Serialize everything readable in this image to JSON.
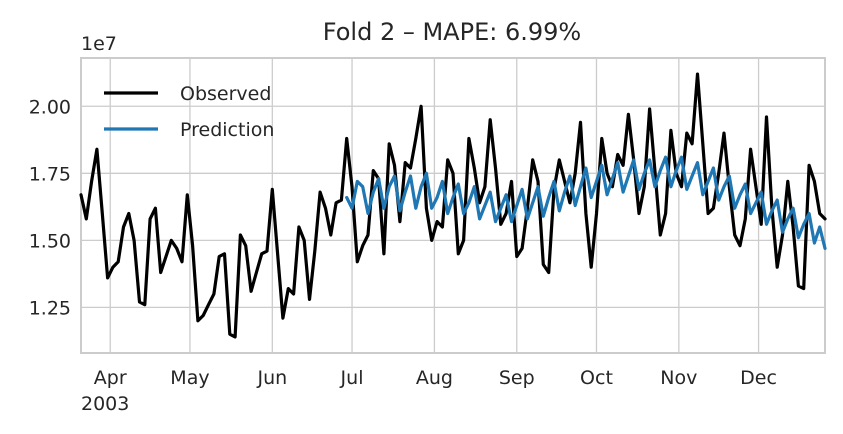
{
  "chart_data": {
    "type": "line",
    "title": "Fold 2 – MAPE: 6.99%",
    "offset_label": "1e7",
    "x_year_label": "2003",
    "x_tick_labels": [
      {
        "date": "2003-04-01",
        "label": "Apr"
      },
      {
        "date": "2003-05-01",
        "label": "May"
      },
      {
        "date": "2003-06-01",
        "label": "Jun"
      },
      {
        "date": "2003-07-01",
        "label": "Jul"
      },
      {
        "date": "2003-08-01",
        "label": "Aug"
      },
      {
        "date": "2003-09-01",
        "label": "Sep"
      },
      {
        "date": "2003-10-01",
        "label": "Oct"
      },
      {
        "date": "2003-11-01",
        "label": "Nov"
      },
      {
        "date": "2003-12-01",
        "label": "Dec"
      }
    ],
    "xlim": [
      "2003-03-21",
      "2003-12-26"
    ],
    "y_ticks": [
      {
        "value": 1.25,
        "label": "1.25"
      },
      {
        "value": 1.5,
        "label": "1.50"
      },
      {
        "value": 1.75,
        "label": "1.75"
      },
      {
        "value": 2.0,
        "label": "2.00"
      }
    ],
    "ylim": [
      1.08,
      2.18
    ],
    "y_unit_multiplier": 10000000,
    "grid": true,
    "legend_position": "top-left",
    "series": [
      {
        "name": "Observed",
        "color": "#000000",
        "x": [
          "2003-03-21",
          "2003-03-23",
          "2003-03-25",
          "2003-03-27",
          "2003-03-29",
          "2003-03-31",
          "2003-04-02",
          "2003-04-04",
          "2003-04-06",
          "2003-04-08",
          "2003-04-10",
          "2003-04-12",
          "2003-04-14",
          "2003-04-16",
          "2003-04-18",
          "2003-04-20",
          "2003-04-22",
          "2003-04-24",
          "2003-04-26",
          "2003-04-28",
          "2003-04-30",
          "2003-05-02",
          "2003-05-04",
          "2003-05-06",
          "2003-05-08",
          "2003-05-10",
          "2003-05-12",
          "2003-05-14",
          "2003-05-16",
          "2003-05-18",
          "2003-05-20",
          "2003-05-22",
          "2003-05-24",
          "2003-05-26",
          "2003-05-28",
          "2003-05-30",
          "2003-06-01",
          "2003-06-03",
          "2003-06-05",
          "2003-06-07",
          "2003-06-09",
          "2003-06-11",
          "2003-06-13",
          "2003-06-15",
          "2003-06-17",
          "2003-06-19",
          "2003-06-21",
          "2003-06-23",
          "2003-06-25",
          "2003-06-27",
          "2003-06-29",
          "2003-07-01",
          "2003-07-03",
          "2003-07-05",
          "2003-07-07",
          "2003-07-09",
          "2003-07-11",
          "2003-07-13",
          "2003-07-15",
          "2003-07-17",
          "2003-07-19",
          "2003-07-21",
          "2003-07-23",
          "2003-07-25",
          "2003-07-27",
          "2003-07-29",
          "2003-07-31",
          "2003-08-02",
          "2003-08-04",
          "2003-08-06",
          "2003-08-08",
          "2003-08-10",
          "2003-08-12",
          "2003-08-14",
          "2003-08-16",
          "2003-08-18",
          "2003-08-20",
          "2003-08-22",
          "2003-08-24",
          "2003-08-26",
          "2003-08-28",
          "2003-08-30",
          "2003-09-01",
          "2003-09-03",
          "2003-09-05",
          "2003-09-07",
          "2003-09-09",
          "2003-09-11",
          "2003-09-13",
          "2003-09-15",
          "2003-09-17",
          "2003-09-19",
          "2003-09-21",
          "2003-09-23",
          "2003-09-25",
          "2003-09-27",
          "2003-09-29",
          "2003-10-01",
          "2003-10-03",
          "2003-10-05",
          "2003-10-07",
          "2003-10-09",
          "2003-10-11",
          "2003-10-13",
          "2003-10-15",
          "2003-10-17",
          "2003-10-19",
          "2003-10-21",
          "2003-10-23",
          "2003-10-25",
          "2003-10-27",
          "2003-10-29",
          "2003-10-31",
          "2003-11-02",
          "2003-11-04",
          "2003-11-06",
          "2003-11-08",
          "2003-11-10",
          "2003-11-12",
          "2003-11-14",
          "2003-11-16",
          "2003-11-18",
          "2003-11-20",
          "2003-11-22",
          "2003-11-24",
          "2003-11-26",
          "2003-11-28",
          "2003-11-30",
          "2003-12-02",
          "2003-12-04",
          "2003-12-06",
          "2003-12-08",
          "2003-12-10",
          "2003-12-12",
          "2003-12-14",
          "2003-12-16",
          "2003-12-18",
          "2003-12-20",
          "2003-12-22",
          "2003-12-24",
          "2003-12-26"
        ],
        "y": [
          1.67,
          1.58,
          1.72,
          1.84,
          1.6,
          1.36,
          1.4,
          1.42,
          1.55,
          1.6,
          1.5,
          1.27,
          1.26,
          1.58,
          1.62,
          1.38,
          1.44,
          1.5,
          1.47,
          1.42,
          1.67,
          1.48,
          1.2,
          1.22,
          1.26,
          1.3,
          1.44,
          1.45,
          1.15,
          1.14,
          1.52,
          1.48,
          1.31,
          1.38,
          1.45,
          1.46,
          1.69,
          1.45,
          1.21,
          1.32,
          1.3,
          1.55,
          1.5,
          1.28,
          1.46,
          1.68,
          1.62,
          1.52,
          1.64,
          1.65,
          1.88,
          1.7,
          1.42,
          1.48,
          1.52,
          1.76,
          1.73,
          1.45,
          1.86,
          1.78,
          1.57,
          1.79,
          1.77,
          1.88,
          2.0,
          1.62,
          1.5,
          1.57,
          1.55,
          1.8,
          1.75,
          1.45,
          1.5,
          1.88,
          1.77,
          1.64,
          1.7,
          1.95,
          1.77,
          1.56,
          1.6,
          1.72,
          1.44,
          1.47,
          1.62,
          1.8,
          1.72,
          1.41,
          1.38,
          1.69,
          1.8,
          1.72,
          1.64,
          1.75,
          1.94,
          1.6,
          1.4,
          1.6,
          1.88,
          1.75,
          1.7,
          1.82,
          1.78,
          1.97,
          1.8,
          1.6,
          1.7,
          1.99,
          1.76,
          1.52,
          1.6,
          1.91,
          1.75,
          1.7,
          1.9,
          1.86,
          2.12,
          1.86,
          1.6,
          1.62,
          1.75,
          1.9,
          1.7,
          1.52,
          1.48,
          1.58,
          1.84,
          1.7,
          1.56,
          1.96,
          1.62,
          1.4,
          1.52,
          1.72,
          1.55,
          1.33,
          1.32,
          1.78,
          1.72,
          1.6,
          1.58
        ],
        "start_date": "2003-03-21",
        "step_days": 2
      },
      {
        "name": "Prediction",
        "color": "#1f77b4",
        "x": [
          "2003-06-29",
          "2003-07-01",
          "2003-07-03",
          "2003-07-05",
          "2003-07-07",
          "2003-07-09",
          "2003-07-11",
          "2003-07-13",
          "2003-07-15",
          "2003-07-17",
          "2003-07-19",
          "2003-07-21",
          "2003-07-23",
          "2003-07-25",
          "2003-07-27",
          "2003-07-29",
          "2003-07-31",
          "2003-08-02",
          "2003-08-04",
          "2003-08-06",
          "2003-08-08",
          "2003-08-10",
          "2003-08-12",
          "2003-08-14",
          "2003-08-16",
          "2003-08-18",
          "2003-08-20",
          "2003-08-22",
          "2003-08-24",
          "2003-08-26",
          "2003-08-28",
          "2003-08-30",
          "2003-09-01",
          "2003-09-03",
          "2003-09-05",
          "2003-09-07",
          "2003-09-09",
          "2003-09-11",
          "2003-09-13",
          "2003-09-15",
          "2003-09-17",
          "2003-09-19",
          "2003-09-21",
          "2003-09-23",
          "2003-09-25",
          "2003-09-27",
          "2003-09-29",
          "2003-10-01",
          "2003-10-03",
          "2003-10-05",
          "2003-10-07",
          "2003-10-09",
          "2003-10-11",
          "2003-10-13",
          "2003-10-15",
          "2003-10-17",
          "2003-10-19",
          "2003-10-21",
          "2003-10-23",
          "2003-10-25",
          "2003-10-27",
          "2003-10-29",
          "2003-10-31",
          "2003-11-02",
          "2003-11-04",
          "2003-11-06",
          "2003-11-08",
          "2003-11-10",
          "2003-11-12",
          "2003-11-14",
          "2003-11-16",
          "2003-11-18",
          "2003-11-20",
          "2003-11-22",
          "2003-11-24",
          "2003-11-26",
          "2003-11-28",
          "2003-11-30",
          "2003-12-02",
          "2003-12-04",
          "2003-12-06",
          "2003-12-08",
          "2003-12-10",
          "2003-12-12",
          "2003-12-14",
          "2003-12-16",
          "2003-12-18",
          "2003-12-20",
          "2003-12-22",
          "2003-12-24",
          "2003-12-26"
        ],
        "y": [
          1.66,
          1.62,
          1.72,
          1.7,
          1.6,
          1.68,
          1.73,
          1.62,
          1.7,
          1.74,
          1.61,
          1.68,
          1.74,
          1.62,
          1.7,
          1.75,
          1.62,
          1.66,
          1.72,
          1.6,
          1.66,
          1.71,
          1.6,
          1.64,
          1.7,
          1.58,
          1.63,
          1.68,
          1.57,
          1.62,
          1.67,
          1.57,
          1.63,
          1.69,
          1.58,
          1.64,
          1.7,
          1.59,
          1.66,
          1.72,
          1.61,
          1.68,
          1.74,
          1.63,
          1.7,
          1.77,
          1.66,
          1.72,
          1.78,
          1.67,
          1.73,
          1.79,
          1.68,
          1.74,
          1.8,
          1.69,
          1.75,
          1.8,
          1.7,
          1.76,
          1.81,
          1.7,
          1.76,
          1.81,
          1.69,
          1.74,
          1.79,
          1.67,
          1.72,
          1.77,
          1.65,
          1.7,
          1.74,
          1.62,
          1.67,
          1.71,
          1.6,
          1.64,
          1.68,
          1.56,
          1.61,
          1.65,
          1.53,
          1.58,
          1.62,
          1.51,
          1.56,
          1.6,
          1.49,
          1.55,
          1.47
        ],
        "start_date": "2003-06-29",
        "step_days": 2
      }
    ]
  }
}
